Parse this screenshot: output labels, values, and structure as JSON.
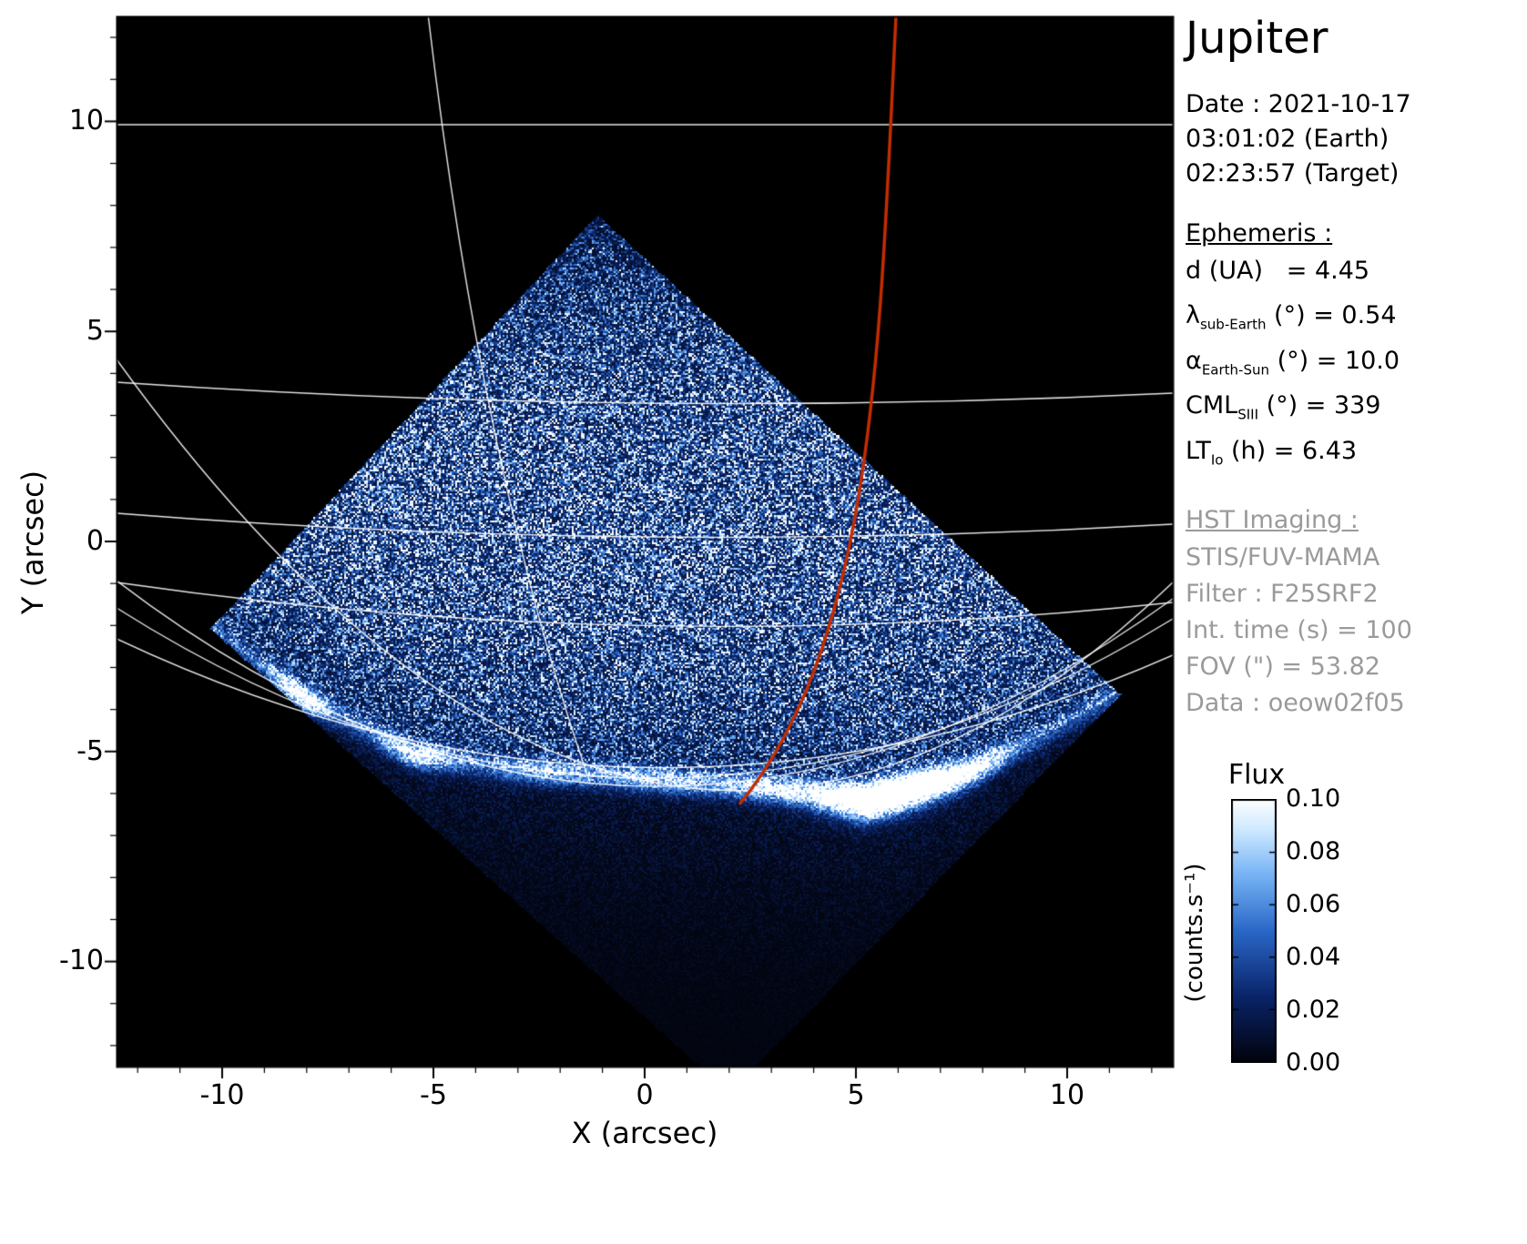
{
  "panel": {
    "title": "Jupiter",
    "date_lines": [
      "Date : 2021-10-17",
      "03:01:02 (Earth)",
      "02:23:57 (Target)"
    ],
    "ephemeris_header": "Ephemeris :",
    "ephemeris_rows": [
      {
        "sym": "d (UA)",
        "sub": "",
        "rest": "   = 4.45"
      },
      {
        "sym": "λ",
        "sub": "sub-Earth",
        "rest": " (°) = 0.54"
      },
      {
        "sym": "α",
        "sub": "Earth-Sun",
        "rest": " (°) = 10.0"
      },
      {
        "sym": "CML",
        "sub": "SIII",
        "rest": " (°) = 339"
      },
      {
        "sym": "LT",
        "sub": "Io",
        "rest": " (h) = 6.43"
      }
    ],
    "hst_header": "HST Imaging :",
    "hst_lines": [
      "STIS/FUV-MAMA",
      "Filter : F25SRF2",
      "Int. time (s) = 100",
      "FOV (\") = 53.82",
      "Data : oeow02f05"
    ]
  },
  "chart_data": {
    "type": "heatmap",
    "title": "Jupiter",
    "xlabel": "X (arcsec)",
    "ylabel": "Y (arcsec)",
    "xlim": [
      -12.5,
      12.5
    ],
    "ylim": [
      -12.5,
      12.5
    ],
    "xticks": [
      -10,
      -5,
      0,
      5,
      10
    ],
    "yticks": [
      10,
      5,
      0,
      -5,
      -10
    ],
    "xtick_labels": [
      "-10",
      "-5",
      "0",
      "5",
      "10"
    ],
    "ytick_labels": [
      "10",
      "5",
      "0",
      "-5",
      "-10"
    ],
    "grid": "planetary graticule overlay",
    "colorbar": {
      "title": "Flux",
      "unit": "(counts.s⁻¹)",
      "tick_labels": [
        "0.10",
        "0.08",
        "0.06",
        "0.04",
        "0.02",
        "0.00"
      ],
      "vmin": 0.0,
      "vmax": 0.1
    },
    "colors": {
      "background": "#000000",
      "noise_low": "#02030c",
      "noise_mid": "#2a68c8",
      "noise_high": "#ffffff",
      "graticule": "#ffffff",
      "curve_red": "#c32d00"
    }
  }
}
